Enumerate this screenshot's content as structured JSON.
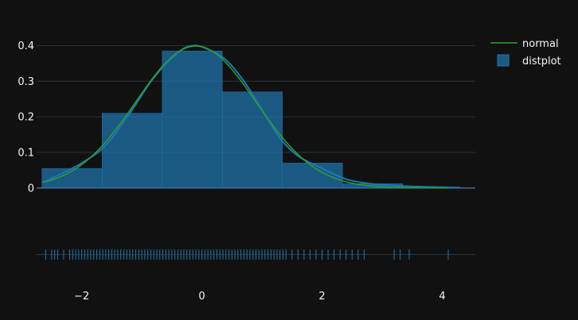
{
  "chart_data": {
    "type": "histogram",
    "title": "",
    "xlabel": "",
    "ylabel": "",
    "xlim": [
      -2.75,
      4.55
    ],
    "ylim": [
      -0.005,
      0.43
    ],
    "x_ticks": [
      -2,
      0,
      2,
      4
    ],
    "x_tick_labels": [
      "−2",
      "0",
      "2",
      "4"
    ],
    "y_ticks": [
      0,
      0.1,
      0.2,
      0.3,
      0.4
    ],
    "y_tick_labels": [
      "0",
      "0.1",
      "0.2",
      "0.3",
      "0.4"
    ],
    "grid": true,
    "legend_position": "top-right",
    "histogram": {
      "name": "distplot",
      "color": "#1f77b4",
      "bins": [
        {
          "x0": -2.66,
          "x1": -1.66,
          "value": 0.055
        },
        {
          "x0": -1.66,
          "x1": -0.66,
          "value": 0.21
        },
        {
          "x0": -0.66,
          "x1": 0.34,
          "value": 0.385
        },
        {
          "x0": 0.34,
          "x1": 1.34,
          "value": 0.27
        },
        {
          "x0": 1.34,
          "x1": 2.34,
          "value": 0.07
        },
        {
          "x0": 2.34,
          "x1": 3.34,
          "value": 0.012
        }
      ]
    },
    "kde": {
      "color": "#1f77b4",
      "x": [
        -2.66,
        -2.4,
        -2.0,
        -1.6,
        -1.2,
        -0.8,
        -0.4,
        -0.15,
        0.1,
        0.4,
        0.7,
        1.0,
        1.3,
        1.6,
        2.0,
        2.4,
        2.8,
        3.3,
        3.8,
        4.3
      ],
      "y": [
        0.015,
        0.035,
        0.07,
        0.12,
        0.21,
        0.31,
        0.38,
        0.4,
        0.39,
        0.36,
        0.3,
        0.22,
        0.14,
        0.09,
        0.055,
        0.025,
        0.012,
        0.006,
        0.003,
        0.001
      ]
    },
    "normal_curve": {
      "name": "normal",
      "color": "#2ca02c",
      "mean": -0.1,
      "std": 1.0,
      "x_range": [
        -2.66,
        4.1
      ]
    },
    "rug": {
      "color": "#1f77b4",
      "x": [
        -2.6,
        -2.5,
        -2.45,
        -2.4,
        -2.3,
        -2.2,
        -2.15,
        -2.1,
        -2.05,
        -2.0,
        -1.95,
        -1.9,
        -1.85,
        -1.8,
        -1.75,
        -1.7,
        -1.65,
        -1.6,
        -1.55,
        -1.5,
        -1.45,
        -1.4,
        -1.35,
        -1.3,
        -1.25,
        -1.2,
        -1.15,
        -1.1,
        -1.05,
        -1.0,
        -0.95,
        -0.9,
        -0.85,
        -0.8,
        -0.75,
        -0.7,
        -0.65,
        -0.6,
        -0.55,
        -0.5,
        -0.45,
        -0.4,
        -0.35,
        -0.3,
        -0.25,
        -0.2,
        -0.15,
        -0.1,
        -0.05,
        0.0,
        0.05,
        0.1,
        0.15,
        0.2,
        0.25,
        0.3,
        0.35,
        0.4,
        0.45,
        0.5,
        0.55,
        0.6,
        0.65,
        0.7,
        0.75,
        0.8,
        0.85,
        0.9,
        0.95,
        1.0,
        1.05,
        1.1,
        1.15,
        1.2,
        1.25,
        1.3,
        1.35,
        1.4,
        1.5,
        1.6,
        1.7,
        1.8,
        1.9,
        2.0,
        2.1,
        2.2,
        2.3,
        2.4,
        2.5,
        2.6,
        2.7,
        3.2,
        3.3,
        3.45,
        4.1
      ]
    }
  }
}
